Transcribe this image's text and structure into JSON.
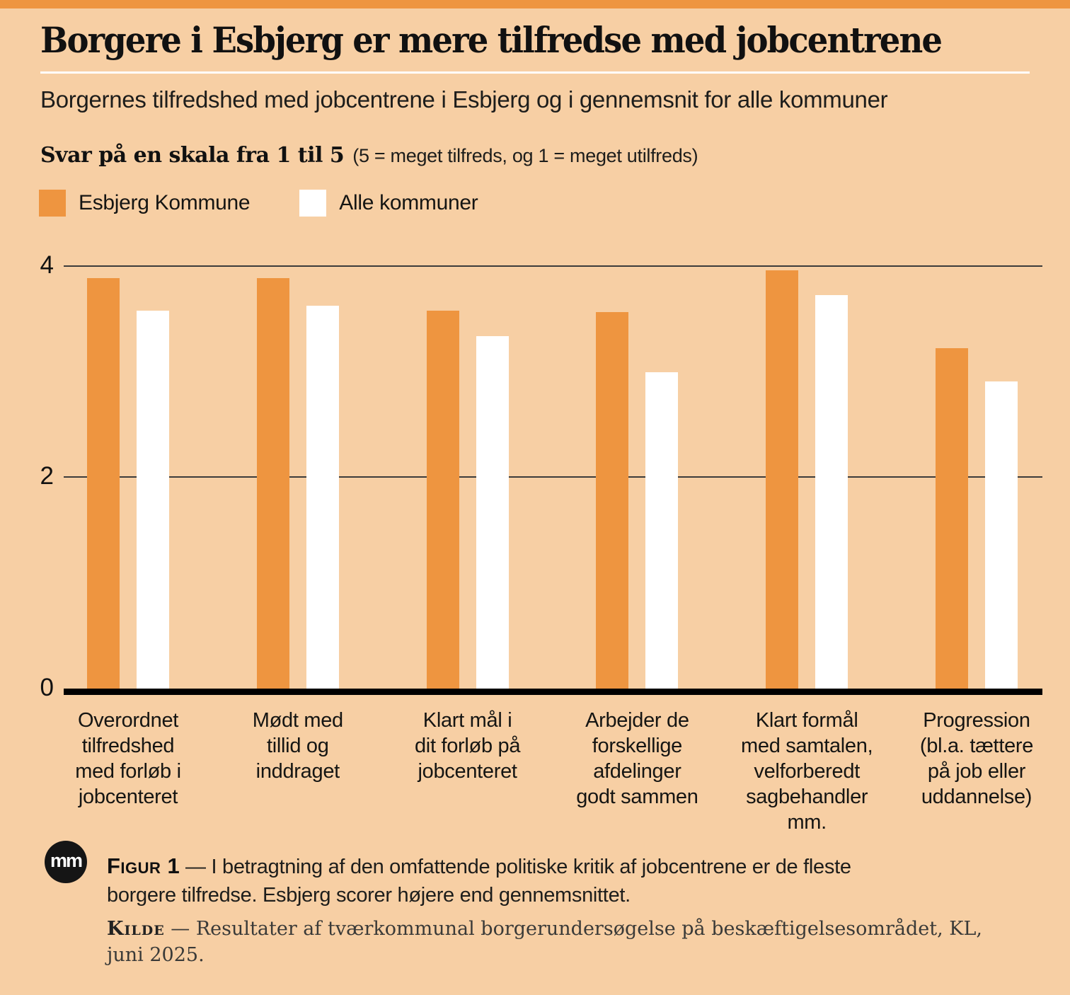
{
  "page": {
    "title": "Borgere i Esbjerg er mere tilfredse med jobcentrene",
    "subtitle": "Borgernes tilfredshed med jobcentrene i Esbjerg og i gennemsnit for alle kommuner",
    "scale_note_bold": "Svar på en skala fra 1 til 5",
    "scale_note_detail": "(5 = meget tilfreds, og 1 = meget utilfreds)"
  },
  "legend": [
    {
      "label": "Esbjerg Kommune",
      "color": "#EE9540"
    },
    {
      "label": "Alle kommuner",
      "color": "#FFFFFF"
    }
  ],
  "chart_data": {
    "type": "bar",
    "title": "Borgere i Esbjerg er mere tilfredse med jobcentrene",
    "subtitle": "Borgernes tilfredshed med jobcentrene i Esbjerg og i gennemsnit for alle kommuner",
    "scale_note": "Svar på en skala fra 1 til 5 (5 = meget tilfreds, og 1 = meget utilfreds)",
    "categories": [
      "Overordnet\ntilfredshed\nmed forløb i\njobcenteret",
      "Mødt med\ntillid og\ninddraget",
      "Klart mål i\ndit forløb på\njobcenteret",
      "Arbejder de\nforskellige\nafdelinger\ngodt sammen",
      "Klart formål\nmed samtalen,\nvelforberedt\nsagbehandler\nmm.",
      "Progression\n(bl.a. tættere\npå job eller\nuddannelse)"
    ],
    "series": [
      {
        "name": "Esbjerg Kommune",
        "color": "#EE9540",
        "values": [
          3.88,
          3.88,
          3.57,
          3.56,
          3.95,
          3.22
        ]
      },
      {
        "name": "Alle kommuner",
        "color": "#FFFFFF",
        "values": [
          3.57,
          3.62,
          3.33,
          2.99,
          3.72,
          2.9
        ]
      }
    ],
    "xlabel": "",
    "ylabel": "",
    "ylim": [
      0,
      4
    ],
    "yticks": [
      "4",
      "2",
      "0"
    ],
    "grid": "horizontal gridlines at 2 and 4, thick black baseline at 0",
    "legend_position": "top-left above plot"
  },
  "footer": {
    "logo": "mm",
    "figure_label": "Figur 1",
    "figure_text": " — I betragtning af den omfattende politiske kritik af jobcentrene er de fleste\nborgere tilfredse. Esbjerg scorer højere end gennemsnittet.",
    "source_label": "Kilde",
    "source_text": " — Resultater af tværkommunal borgerundersøgelse på beskæftigelsesområdet, KL,\njuni 2025."
  },
  "colors": {
    "background": "#F7CFA4",
    "accent_orange": "#EE9540",
    "bar_white": "#FFFFFF",
    "text": "#1A1A18"
  }
}
